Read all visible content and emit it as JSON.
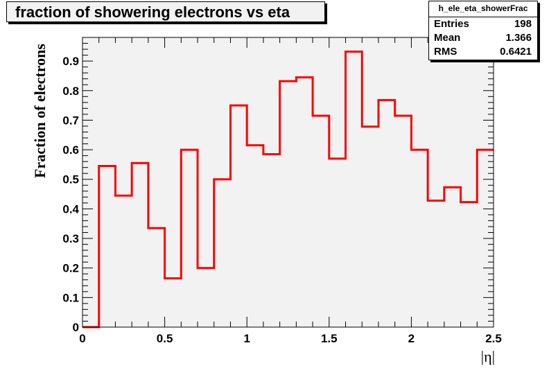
{
  "title": "fraction of showering electrons vs eta",
  "stats": {
    "name": "h_ele_eta_showerFrac",
    "entries_label": "Entries",
    "entries_value": "198",
    "mean_label": "Mean",
    "mean_value": "1.366",
    "rms_label": "RMS",
    "rms_value": "0.6421"
  },
  "colors": {
    "line": "#ff0000",
    "frame_fill": "#f2f2f2"
  },
  "chart_data": {
    "type": "histogram",
    "title": "fraction of showering electrons vs eta",
    "xlabel": "|η|",
    "ylabel": "Fraction of electrons",
    "xlim": [
      0,
      2.5
    ],
    "ylim": [
      0,
      0.98
    ],
    "bin_width": 0.1,
    "bin_edges_start": 0,
    "values": [
      0,
      0.545,
      0.445,
      0.555,
      0.335,
      0.165,
      0.6,
      0.2,
      0.5,
      0.75,
      0.615,
      0.585,
      0.832,
      0.845,
      0.715,
      0.57,
      0.932,
      0.678,
      0.768,
      0.715,
      0.6,
      0.428,
      0.473,
      0.423,
      0.6
    ],
    "x_ticks": [
      0,
      0.5,
      1,
      1.5,
      2,
      2.5
    ],
    "x_tick_labels": [
      "0",
      "0.5",
      "1",
      "1.5",
      "2",
      "2.5"
    ],
    "y_ticks": [
      0,
      0.1,
      0.2,
      0.3,
      0.4,
      0.5,
      0.6,
      0.7,
      0.8,
      0.9
    ],
    "y_tick_labels": [
      "0",
      "0.1",
      "0.2",
      "0.3",
      "0.4",
      "0.5",
      "0.6",
      "0.7",
      "0.8",
      "0.9"
    ],
    "grid": false,
    "legend": "none"
  }
}
